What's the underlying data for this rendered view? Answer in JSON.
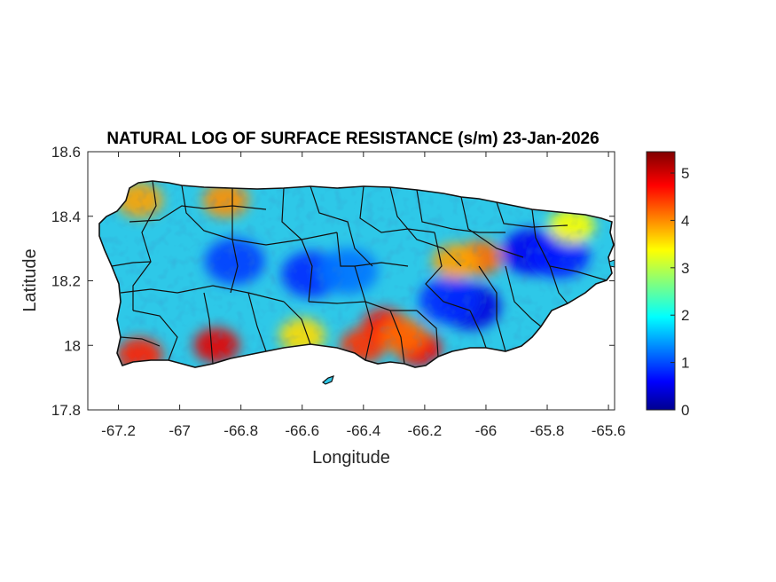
{
  "title": "NATURAL LOG OF SURFACE RESISTANCE (s/m) 23-Jan-2026",
  "xaxis": {
    "label": "Longitude",
    "range": [
      -67.3,
      -65.58
    ],
    "ticks": [
      -67.2,
      -67,
      -66.8,
      -66.6,
      -66.4,
      -66.2,
      -66,
      -65.8,
      -65.6
    ],
    "tick_labels": [
      "-67.2",
      "-67",
      "-66.8",
      "-66.6",
      "-66.4",
      "-66.2",
      "-66",
      "-65.8",
      "-65.6"
    ]
  },
  "yaxis": {
    "label": "Latitude",
    "range": [
      17.8,
      18.6
    ],
    "ticks": [
      17.8,
      18,
      18.2,
      18.4,
      18.6
    ],
    "tick_labels": [
      "17.8",
      "18",
      "18.2",
      "18.4",
      "18.6"
    ]
  },
  "colorbar": {
    "colormap": "jet",
    "range": [
      0,
      5.45
    ],
    "ticks": [
      0,
      1,
      2,
      3,
      4,
      5
    ],
    "tick_labels": [
      "0",
      "1",
      "2",
      "3",
      "4",
      "5"
    ]
  },
  "chart_data": {
    "type": "heatmap",
    "title": "NATURAL LOG OF SURFACE RESISTANCE (s/m) 23-Jan-2026",
    "xlabel": "Longitude",
    "ylabel": "Latitude",
    "xlim": [
      -67.3,
      -65.58
    ],
    "ylim": [
      17.8,
      18.6
    ],
    "value_range": [
      0,
      5.45
    ],
    "colormap": "jet",
    "region": "Puerto Rico with municipality boundaries",
    "hotspots": [
      {
        "lon": -66.82,
        "lat": 18.26,
        "value": 1.0
      },
      {
        "lon": -66.57,
        "lat": 18.22,
        "value": 0.9
      },
      {
        "lon": -66.45,
        "lat": 18.23,
        "value": 1.3
      },
      {
        "lon": -66.05,
        "lat": 18.12,
        "value": 0.5
      },
      {
        "lon": -66.12,
        "lat": 18.14,
        "value": 0.9
      },
      {
        "lon": -65.85,
        "lat": 18.29,
        "value": 0.6
      },
      {
        "lon": -65.76,
        "lat": 18.28,
        "value": 0.8
      },
      {
        "lon": -66.33,
        "lat": 18.06,
        "value": 4.7
      },
      {
        "lon": -66.4,
        "lat": 18.0,
        "value": 4.5
      },
      {
        "lon": -66.22,
        "lat": 17.99,
        "value": 4.8
      },
      {
        "lon": -66.27,
        "lat": 18.03,
        "value": 4.2
      },
      {
        "lon": -66.88,
        "lat": 18.0,
        "value": 4.9
      },
      {
        "lon": -67.13,
        "lat": 17.97,
        "value": 4.6
      },
      {
        "lon": -66.85,
        "lat": 18.45,
        "value": 4.0
      },
      {
        "lon": -67.13,
        "lat": 18.45,
        "value": 3.9
      },
      {
        "lon": -66.02,
        "lat": 18.27,
        "value": 4.2
      },
      {
        "lon": -66.1,
        "lat": 18.26,
        "value": 3.9
      },
      {
        "lon": -66.6,
        "lat": 18.03,
        "value": 3.6
      },
      {
        "lon": -65.72,
        "lat": 18.37,
        "value": 3.4
      }
    ]
  }
}
